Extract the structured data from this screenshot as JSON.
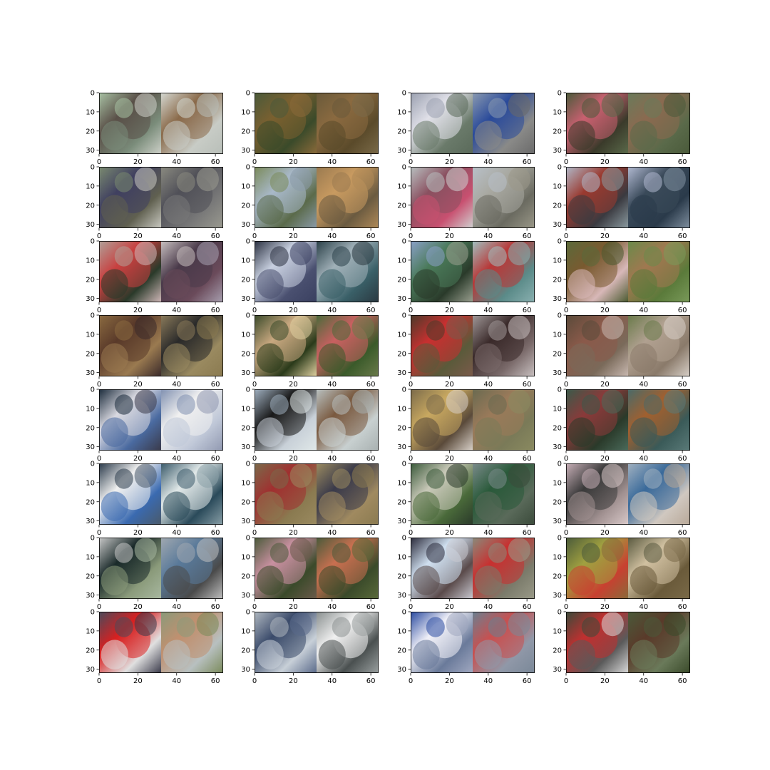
{
  "figure": {
    "rows": 8,
    "cols": 4,
    "x_ticks": [
      "0",
      "20",
      "40",
      "60"
    ],
    "y_ticks": [
      "0",
      "10",
      "20",
      "30"
    ]
  },
  "panels": [
    {
      "left": [
        "#a8c2a4",
        "#5a5048",
        "#7a8c7a",
        "#cdd0c8"
      ],
      "right": [
        "#d4d8d2",
        "#8a6a4a",
        "#c8ccc6",
        "#b8beb8"
      ]
    },
    {
      "left": [
        "#4a5a3a",
        "#7a6030",
        "#3a4a2a",
        "#8a6a3a"
      ],
      "right": [
        "#6a5a3a",
        "#8a6a40",
        "#5a4a2a",
        "#7a6a48"
      ]
    },
    {
      "left": [
        "#9aa0b0",
        "#e0e0e8",
        "#6a7a6a",
        "#5a6a5a"
      ],
      "right": [
        "#8a9ab0",
        "#2a4a9a",
        "#8a8a88",
        "#6a6a6a"
      ]
    },
    {
      "left": [
        "#4a5a3a",
        "#c86070",
        "#3a3a2a",
        "#5a6a4a"
      ],
      "right": [
        "#6a7a5a",
        "#8a6a50",
        "#5a6a4a",
        "#4a5a3a"
      ]
    },
    {
      "left": [
        "#7a8a70",
        "#404060",
        "#606050",
        "#c8c8c0"
      ],
      "right": [
        "#8a8a80",
        "#505058",
        "#787878",
        "#9a9a90"
      ]
    },
    {
      "left": [
        "#7a8a5a",
        "#a8b8c8",
        "#5a6a4a",
        "#8a9aa8"
      ],
      "right": [
        "#9a7a50",
        "#c89a60",
        "#6a5a40",
        "#b08a58"
      ]
    },
    {
      "left": [
        "#b8c0c0",
        "#8a5060",
        "#c85070",
        "#d0d0d0"
      ],
      "right": [
        "#b8c0c8",
        "#a8a8a0",
        "#6a6a60",
        "#9a9888"
      ]
    },
    {
      "left": [
        "#b0b8c8",
        "#9a3a30",
        "#3a3a40",
        "#8a9aa0"
      ],
      "right": [
        "#b0b8d0",
        "#3a4a5a",
        "#2a3a4a",
        "#8090a0"
      ]
    },
    {
      "left": [
        "#b0a098",
        "#c84040",
        "#2a3a2a",
        "#d0b8b8"
      ],
      "right": [
        "#c8c0c0",
        "#4a3a4a",
        "#6a4a5a",
        "#a8a0b0"
      ]
    },
    {
      "left": [
        "#2a3040",
        "#c8d0e0",
        "#4a5070",
        "#3a4060"
      ],
      "right": [
        "#2a4048",
        "#a0b0b8",
        "#3a6068",
        "#2a3840"
      ]
    },
    {
      "left": [
        "#8aa0c8",
        "#4a7a5a",
        "#2a3a2a",
        "#9aa090"
      ],
      "right": [
        "#a0c0c0",
        "#b83838",
        "#5a8a88",
        "#8ab0b0"
      ]
    },
    {
      "left": [
        "#5a6a3a",
        "#7a5a30",
        "#d8b8b8",
        "#4a5a30"
      ],
      "right": [
        "#6a8a4a",
        "#a07850",
        "#5a7a3a",
        "#7a9a5a"
      ]
    },
    {
      "left": [
        "#8a6a40",
        "#5a3a2a",
        "#9a7a50",
        "#3a2a2a"
      ],
      "right": [
        "#8a7a5a",
        "#2a2a2a",
        "#9a8a60",
        "#8a7a50"
      ]
    },
    {
      "left": [
        "#3a4a2a",
        "#c8a880",
        "#2a3a1a",
        "#e0d0a0"
      ],
      "right": [
        "#4a6a3a",
        "#c86060",
        "#3a5a2a",
        "#6a7a4a"
      ]
    },
    {
      "left": [
        "#4a3a2a",
        "#c83030",
        "#5a5a3a",
        "#7a5a4a"
      ],
      "right": [
        "#a09898",
        "#3a2a2a",
        "#7a6a6a",
        "#c8c0c0"
      ]
    },
    {
      "left": [
        "#5a4a3a",
        "#8a5a4a",
        "#7a6a5a",
        "#c8b8b0"
      ],
      "right": [
        "#6a7a4a",
        "#b0a090",
        "#8a7a6a",
        "#d8d0c8"
      ]
    },
    {
      "left": [
        "#1a2a3a",
        "#d8d8e0",
        "#4a6aa0",
        "#3a3a4a"
      ],
      "right": [
        "#8090b0",
        "#f0f0f0",
        "#c0c8d8",
        "#9098b0"
      ]
    },
    {
      "left": [
        "#a0b0c0",
        "#1a1a1a",
        "#c8d0d8",
        "#e0e8e8"
      ],
      "right": [
        "#b8c0c0",
        "#7a5a40",
        "#c8d0d0",
        "#a8b0b0"
      ]
    },
    {
      "left": [
        "#7a6a4a",
        "#c8a860",
        "#5a4a3a",
        "#d8d0c8"
      ],
      "right": [
        "#6a6a50",
        "#9a7a5a",
        "#7a7a58",
        "#8a8a60"
      ]
    },
    {
      "left": [
        "#3a5a4a",
        "#8a3a3a",
        "#2a3a2a",
        "#4a6a5a"
      ],
      "right": [
        "#4a6a68",
        "#a06030",
        "#3a5a58",
        "#5a7a78"
      ]
    },
    {
      "left": [
        "#2a3a4a",
        "#f0f0f0",
        "#3a6ab0",
        "#4a5a6a"
      ],
      "right": [
        "#3a5a6a",
        "#e0e8e8",
        "#2a4a5a",
        "#8aa0a8"
      ]
    },
    {
      "left": [
        "#7a6a4a",
        "#a03030",
        "#8a7a50",
        "#9a8a60"
      ],
      "right": [
        "#9a8a60",
        "#3a3a4a",
        "#a08a60",
        "#8a7a50"
      ]
    },
    {
      "left": [
        "#3a5a3a",
        "#c8c8b8",
        "#4a6a3a",
        "#2a3a2a"
      ],
      "right": [
        "#7a8a8a",
        "#2a5a3a",
        "#5a6a5a",
        "#3a4a3a"
      ]
    },
    {
      "left": [
        "#c8b0b8",
        "#3a3a3a",
        "#a09090",
        "#d8c8c8"
      ],
      "right": [
        "#a0b0c0",
        "#3a6a9a",
        "#d0c8c0",
        "#b8a898"
      ]
    },
    {
      "left": [
        "#c8c8c8",
        "#1a2a2a",
        "#8a9a7a",
        "#a8b8a0"
      ],
      "right": [
        "#a0a8b0",
        "#5a7a9a",
        "#4a4a4a",
        "#c0c0c0"
      ]
    },
    {
      "left": [
        "#4a5a3a",
        "#c890a0",
        "#3a4a2a",
        "#6a5a4a"
      ],
      "right": [
        "#4a5a3a",
        "#c87050",
        "#3a4a2a",
        "#5a6a3a"
      ]
    },
    {
      "left": [
        "#2a2a3a",
        "#d0e0f0",
        "#5a4a4a",
        "#c8c8d0"
      ],
      "right": [
        "#8a8a7a",
        "#c83030",
        "#7a7a6a",
        "#9a9a88"
      ]
    },
    {
      "left": [
        "#4a5a3a",
        "#a0a040",
        "#c84030",
        "#8a6a3a"
      ],
      "right": [
        "#5a5a40",
        "#d0c0a0",
        "#6a5a3a",
        "#7a6a48"
      ]
    },
    {
      "left": [
        "#4a4a5a",
        "#d82020",
        "#e0e0e0",
        "#3a3a4a"
      ],
      "right": [
        "#8a9a7a",
        "#c09070",
        "#b8c0c0",
        "#7a8a5a"
      ]
    },
    {
      "left": [
        "#b0b8c0",
        "#3a4a6a",
        "#c8d0d8",
        "#5a6a8a"
      ],
      "right": [
        "#8a9090",
        "#f0f0f0",
        "#4a5050",
        "#9aa0a0"
      ]
    },
    {
      "left": [
        "#2a4aa0",
        "#f0f0f8",
        "#6a7a9a",
        "#a0a8c0"
      ],
      "right": [
        "#6a8090",
        "#c85050",
        "#9098a8",
        "#7a8898"
      ]
    },
    {
      "left": [
        "#3a4a3a",
        "#c03030",
        "#5a5a5a",
        "#d8d8d8"
      ],
      "right": [
        "#4a5a3a",
        "#5a3a2a",
        "#6a7a5a",
        "#3a4a2a"
      ]
    }
  ]
}
